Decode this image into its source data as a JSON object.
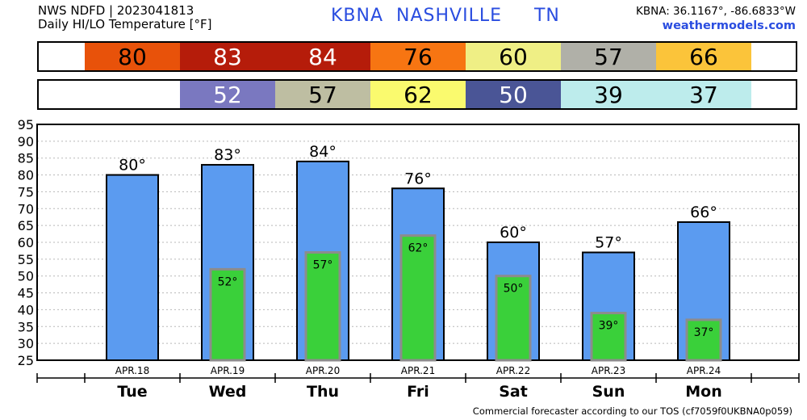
{
  "header": {
    "model_line": "NWS NDFD | 2023041813",
    "metric_line": "Daily HI/LO Temperature [°F]",
    "station": "KBNA",
    "city": "NASHVILLE",
    "state": "TN",
    "coords": "KBNA: 36.1167°, -86.6833°W",
    "site": "weathermodels.com"
  },
  "footer": "Commercial forecaster according to our TOS (cf7059f0UKBNA0p059)",
  "colors": {
    "hi_bar": "#5b9bf0",
    "lo_bar": "#3ad03a",
    "lo_bar_border": "#8c8c8c",
    "hi_cells": [
      "#e8520a",
      "#b51c0a",
      "#b51c0a",
      "#f77512",
      "#efef85",
      "#b0b0a8",
      "#fbc43a"
    ],
    "lo_cells": [
      "",
      "#7a78c0",
      "#bebea2",
      "#fafa6e",
      "#4a5596",
      "#bdecec",
      "#bdecec"
    ],
    "hi_text": [
      "#000",
      "#fff",
      "#fff",
      "#000",
      "#000",
      "#000",
      "#000"
    ],
    "lo_text": [
      "#000",
      "#fff",
      "#000",
      "#000",
      "#fff",
      "#000",
      "#000"
    ]
  },
  "chart_data": {
    "type": "bar",
    "categories": [
      "Tue",
      "Wed",
      "Thu",
      "Fri",
      "Sat",
      "Sun",
      "Mon"
    ],
    "dates": [
      "APR.18",
      "APR.19",
      "APR.20",
      "APR.21",
      "APR.22",
      "APR.23",
      "APR.24"
    ],
    "series": [
      {
        "name": "HI",
        "values": [
          80,
          83,
          84,
          76,
          60,
          57,
          66
        ]
      },
      {
        "name": "LO",
        "values": [
          null,
          52,
          57,
          62,
          50,
          39,
          37
        ]
      }
    ],
    "ylim": [
      25,
      95
    ],
    "yticks": [
      25,
      30,
      35,
      40,
      45,
      50,
      55,
      60,
      65,
      70,
      75,
      80,
      85,
      90,
      95
    ],
    "grid": true,
    "degree_symbol": "°"
  }
}
